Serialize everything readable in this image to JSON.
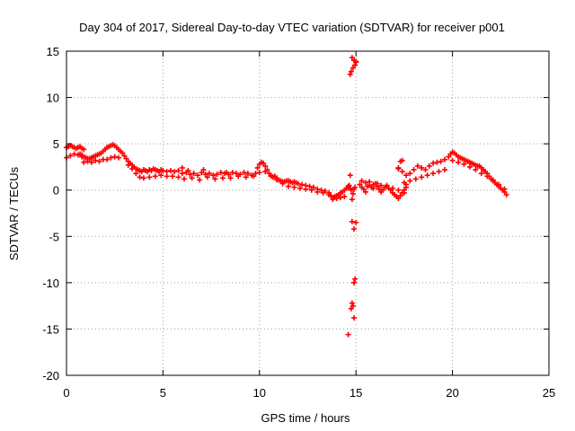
{
  "chart_data": {
    "type": "scatter",
    "title": "Day 304 of 2017, Sidereal Day-to-day VTEC variation (SDTVAR) for receiver p001",
    "xlabel": "GPS time / hours",
    "ylabel": "SDTVAR / TECUs",
    "xlim": [
      0,
      25
    ],
    "ylim": [
      -20,
      15
    ],
    "x_ticks": [
      0,
      5,
      10,
      15,
      20,
      25
    ],
    "y_ticks": [
      -20,
      -15,
      -10,
      -5,
      0,
      5,
      10,
      15
    ],
    "x_tick_labels": [
      "0",
      "5",
      "10",
      "15",
      "20",
      "25"
    ],
    "y_tick_labels": [
      "-20",
      "-15",
      "-10",
      "-5",
      "0",
      "5",
      "10",
      "15"
    ],
    "grid": true,
    "marker": "plus",
    "color": "#ff0000",
    "series": [
      {
        "name": "SDTVAR",
        "x": [
          0.0,
          0.1,
          0.2,
          0.3,
          0.4,
          0.5,
          0.6,
          0.7,
          0.8,
          0.9,
          0.0,
          0.2,
          0.4,
          0.6,
          0.8,
          0.7,
          0.8,
          0.9,
          1.0,
          1.1,
          1.2,
          1.3,
          1.4,
          1.5,
          1.6,
          1.7,
          1.8,
          1.9,
          2.0,
          2.1,
          2.2,
          2.3,
          2.4,
          2.5,
          2.6,
          2.7,
          2.8,
          0.9,
          1.1,
          1.3,
          1.5,
          1.7,
          1.9,
          2.1,
          2.3,
          2.5,
          2.7,
          2.9,
          3.0,
          3.1,
          3.2,
          3.3,
          3.4,
          3.5,
          3.6,
          3.7,
          3.8,
          3.9,
          4.0,
          4.1,
          4.2,
          4.3,
          4.4,
          4.5,
          4.6,
          4.7,
          4.8,
          4.9,
          5.0,
          5.2,
          5.4,
          5.6,
          5.8,
          3.2,
          3.4,
          3.6,
          3.8,
          4.0,
          4.3,
          4.6,
          4.9,
          5.2,
          5.5,
          5.8,
          6.0,
          6.2,
          6.4,
          6.6,
          6.8,
          7.0,
          7.2,
          7.4,
          7.6,
          7.8,
          8.0,
          8.2,
          8.4,
          8.6,
          8.8,
          9.0,
          9.2,
          9.4,
          9.6,
          9.8,
          6.1,
          6.5,
          6.9,
          7.3,
          7.7,
          8.1,
          8.5,
          8.9,
          9.3,
          9.7,
          6.0,
          6.3,
          7.1,
          8.3,
          9.9,
          10.0,
          10.1,
          10.2,
          10.3,
          10.4,
          10.5,
          10.6,
          10.7,
          10.8,
          10.9,
          11.0,
          11.1,
          11.2,
          11.3,
          11.4,
          11.5,
          11.6,
          11.7,
          11.8,
          11.9,
          12.0,
          12.2,
          12.4,
          12.6,
          12.8,
          13.0,
          13.2,
          13.4,
          13.6,
          10.0,
          10.3,
          10.6,
          10.9,
          11.2,
          11.5,
          11.8,
          12.1,
          12.4,
          12.7,
          13.0,
          13.3,
          13.6,
          13.7,
          13.8,
          13.9,
          14.0,
          14.1,
          14.2,
          14.3,
          14.4,
          14.5,
          14.6,
          13.8,
          14.0,
          14.2,
          14.4,
          14.6,
          14.65,
          14.7,
          14.75,
          14.8,
          14.85,
          14.9,
          14.95,
          14.7,
          14.75,
          14.8,
          14.9,
          15.0,
          14.85,
          14.95,
          15.0,
          14.7,
          14.8,
          14.9,
          15.0,
          14.95,
          14.9,
          14.8,
          14.85,
          14.75,
          14.9,
          14.6,
          15.2,
          15.3,
          15.4,
          15.5,
          15.6,
          15.7,
          15.8,
          15.9,
          16.0,
          16.1,
          16.2,
          16.3,
          16.4,
          16.5,
          16.6,
          16.7,
          16.8,
          16.9,
          17.0,
          17.1,
          17.2,
          17.3,
          17.4,
          17.5,
          17.6,
          15.3,
          15.5,
          15.7,
          15.9,
          16.1,
          16.3,
          16.6,
          16.9,
          17.2,
          17.5,
          17.2,
          17.4,
          17.6,
          17.8,
          18.0,
          18.2,
          18.4,
          18.6,
          18.8,
          19.0,
          19.2,
          19.4,
          19.6,
          19.8,
          17.5,
          17.8,
          18.1,
          18.4,
          18.7,
          19.0,
          19.3,
          19.6,
          17.3,
          17.4,
          17.2,
          17.6,
          19.9,
          20.0,
          20.1,
          20.2,
          20.3,
          20.4,
          20.5,
          20.6,
          20.7,
          20.8,
          20.9,
          21.0,
          21.1,
          21.2,
          21.3,
          21.4,
          21.5,
          21.6,
          21.7,
          21.8,
          21.9,
          22.0,
          22.1,
          22.2,
          22.3,
          22.4,
          22.5,
          22.6,
          22.7,
          22.8,
          20.0,
          20.3,
          20.6,
          20.9,
          21.2,
          21.5,
          21.8,
          22.1,
          22.4,
          22.7
        ],
        "y": [
          4.6,
          4.7,
          4.8,
          4.7,
          4.6,
          4.5,
          4.6,
          4.7,
          4.5,
          4.4,
          3.5,
          3.7,
          3.9,
          3.8,
          3.6,
          3.9,
          3.8,
          3.6,
          3.5,
          3.4,
          3.4,
          3.5,
          3.6,
          3.7,
          3.8,
          3.9,
          4.0,
          4.2,
          4.4,
          4.6,
          4.7,
          4.8,
          4.9,
          4.8,
          4.6,
          4.4,
          4.2,
          3.0,
          3.1,
          3.0,
          3.2,
          3.1,
          3.3,
          3.3,
          3.5,
          3.6,
          3.5,
          4.0,
          3.7,
          3.4,
          3.1,
          2.9,
          2.7,
          2.5,
          2.3,
          2.2,
          2.1,
          2.0,
          2.2,
          2.1,
          2.0,
          2.2,
          2.1,
          2.3,
          2.2,
          2.1,
          2.0,
          2.2,
          2.1,
          2.0,
          2.1,
          2.0,
          2.1,
          2.7,
          2.3,
          1.8,
          1.4,
          1.3,
          1.4,
          1.5,
          1.6,
          1.5,
          1.5,
          1.4,
          1.8,
          1.9,
          1.7,
          1.8,
          1.6,
          1.9,
          1.7,
          1.8,
          1.6,
          1.7,
          1.9,
          1.8,
          1.7,
          1.9,
          1.8,
          1.7,
          1.9,
          1.8,
          1.6,
          1.8,
          1.2,
          1.3,
          1.1,
          1.4,
          1.2,
          1.3,
          1.3,
          1.5,
          1.4,
          1.5,
          2.4,
          2.1,
          2.2,
          1.9,
          2.4,
          2.8,
          3.0,
          2.9,
          2.6,
          2.2,
          1.8,
          1.5,
          1.4,
          1.5,
          1.3,
          1.1,
          1.0,
          0.9,
          0.9,
          1.0,
          1.0,
          0.9,
          0.8,
          0.9,
          0.8,
          0.7,
          0.6,
          0.5,
          0.4,
          0.3,
          0.1,
          0.0,
          -0.1,
          -0.3,
          1.9,
          2.0,
          1.6,
          1.1,
          0.7,
          0.4,
          0.3,
          0.2,
          0.1,
          0.0,
          -0.2,
          -0.3,
          -0.5,
          -0.6,
          -0.8,
          -0.7,
          -0.6,
          -0.5,
          -0.3,
          -0.2,
          0.0,
          0.2,
          0.3,
          -1.0,
          -0.9,
          -0.8,
          -0.7,
          0.4,
          0.5,
          0.2,
          0.0,
          -1.0,
          -0.4,
          0.1,
          0.3,
          12.5,
          12.8,
          14.3,
          14.0,
          13.8,
          13.2,
          13.5,
          13.9,
          1.6,
          -3.4,
          -4.2,
          -3.5,
          -9.6,
          -10.0,
          -12.2,
          -12.5,
          -12.8,
          -13.8,
          -15.6,
          0.6,
          0.3,
          0.1,
          -0.2,
          0.4,
          0.5,
          0.3,
          0.2,
          0.7,
          0.4,
          0.1,
          -0.2,
          0.0,
          0.3,
          0.5,
          0.2,
          0.0,
          -0.3,
          -0.5,
          -0.7,
          -0.9,
          -0.6,
          -0.3,
          0.0,
          0.3,
          1.0,
          0.8,
          0.9,
          0.6,
          0.7,
          0.5,
          0.4,
          0.2,
          0.0,
          -0.3,
          2.4,
          2.0,
          1.6,
          1.8,
          2.2,
          2.6,
          2.4,
          2.2,
          2.6,
          2.9,
          3.0,
          3.1,
          3.3,
          3.6,
          0.8,
          1.0,
          1.2,
          1.4,
          1.6,
          1.8,
          2.0,
          2.2,
          3.1,
          3.2,
          2.3,
          0.6,
          3.9,
          4.1,
          4.0,
          3.8,
          3.6,
          3.5,
          3.4,
          3.3,
          3.2,
          3.1,
          3.0,
          2.9,
          2.8,
          2.7,
          2.6,
          2.6,
          2.4,
          2.2,
          2.0,
          1.8,
          1.5,
          1.2,
          1.0,
          0.8,
          0.6,
          0.4,
          0.2,
          0.0,
          -0.2,
          -0.5,
          3.2,
          3.0,
          2.8,
          2.5,
          2.2,
          1.8,
          1.5,
          1.1,
          0.6,
          0.1
        ]
      }
    ]
  }
}
